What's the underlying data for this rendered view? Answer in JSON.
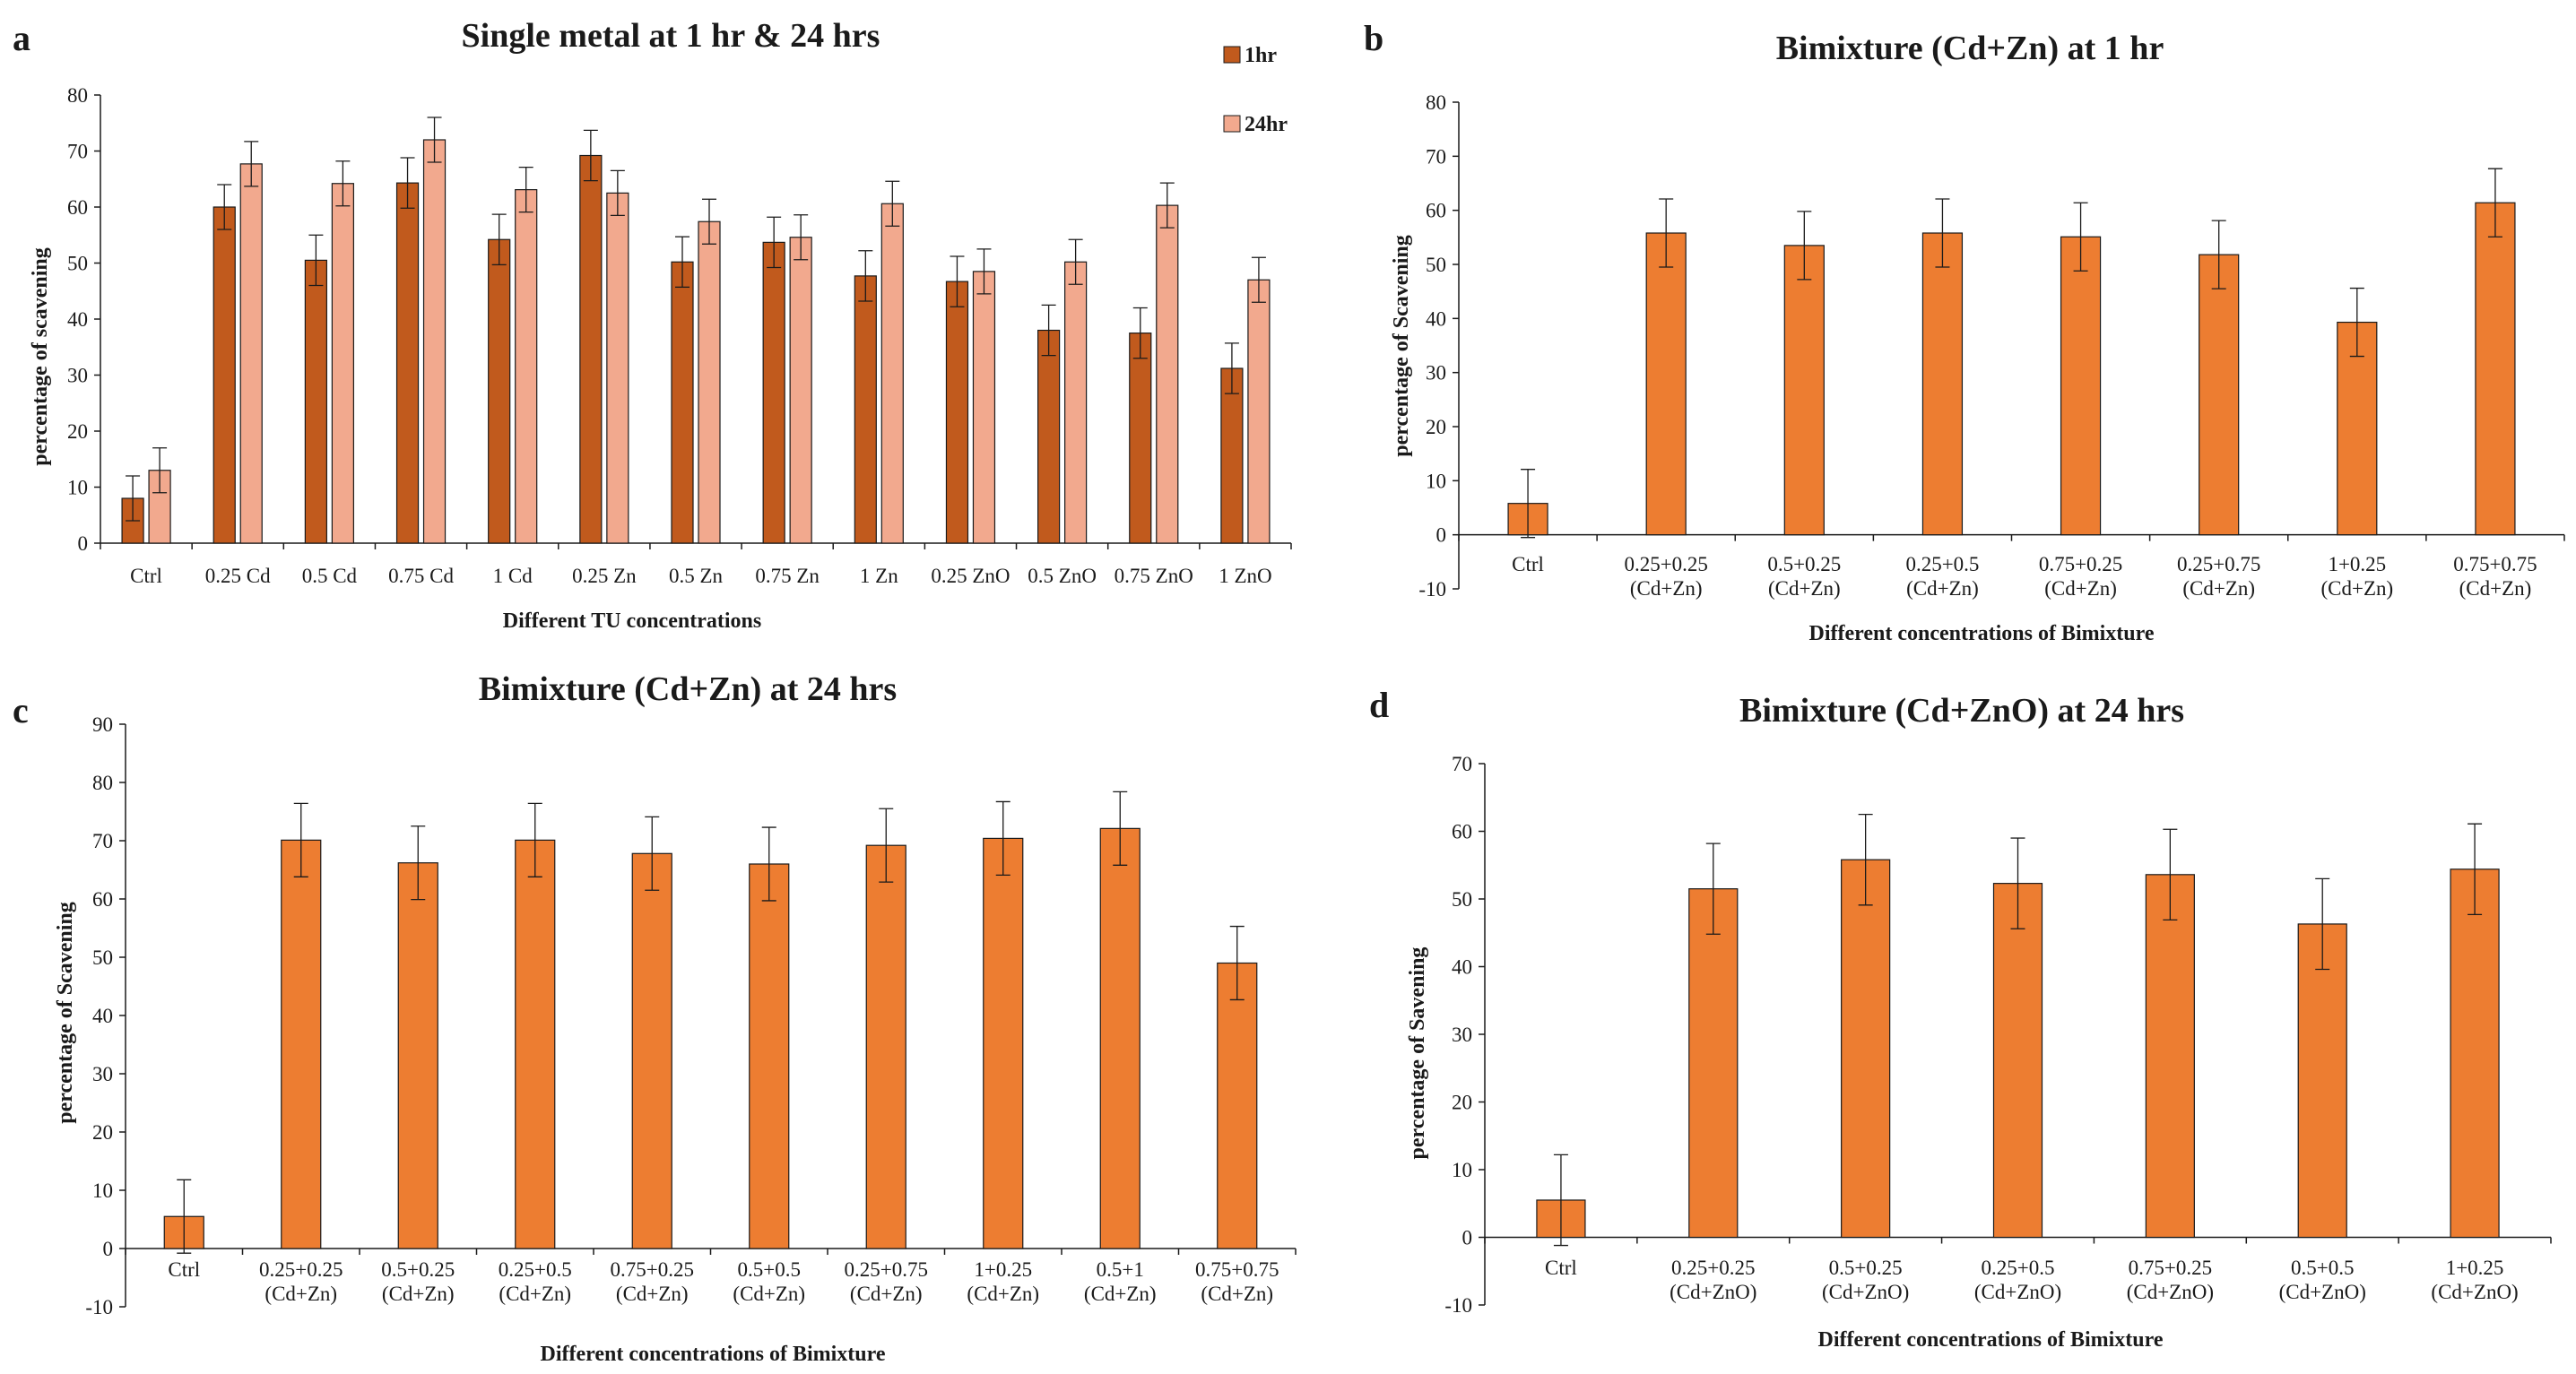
{
  "figure": {
    "colors": {
      "dark_bar": "#c15a1d",
      "light_bar": "#f2a98e",
      "orange_bar": "#ed7d31",
      "axis": "#1a1a1a"
    }
  },
  "chart_data": [
    {
      "panel": "a",
      "type": "bar",
      "title": "Single metal at 1 hr & 24 hrs",
      "xlabel": "Different TU  concentrations",
      "ylabel": "percentage of scavening",
      "ylim": [
        0,
        80
      ],
      "yticks": [
        0,
        10,
        20,
        30,
        40,
        50,
        60,
        70,
        80
      ],
      "categories": [
        "Ctrl",
        "0.25 Cd",
        "0.5 Cd",
        "0.75 Cd",
        "1 Cd",
        "0.25 Zn",
        "0.5 Zn",
        "0.75 Zn",
        "1 Zn",
        "0.25 ZnO",
        "0.5 ZnO",
        "0.75 ZnO",
        "1 ZnO"
      ],
      "legend_position": "top-right",
      "series": [
        {
          "name": "1hr",
          "values": [
            8,
            60,
            50.5,
            64.3,
            54.2,
            69.2,
            50.2,
            53.7,
            47.7,
            46.7,
            38,
            37.5,
            31.2
          ],
          "errors": [
            4,
            4,
            4.5,
            4.5,
            4.5,
            4.5,
            4.5,
            4.5,
            4.5,
            4.5,
            4.5,
            4.5,
            4.5
          ]
        },
        {
          "name": "24hr",
          "values": [
            13,
            67.7,
            64.2,
            72,
            63.1,
            62.5,
            57.4,
            54.6,
            60.6,
            48.5,
            50.2,
            60.3,
            47
          ],
          "errors": [
            4,
            4,
            4,
            4,
            4,
            4,
            4,
            4,
            4,
            4,
            4,
            4,
            4
          ]
        }
      ]
    },
    {
      "panel": "b",
      "type": "bar",
      "title": "Bimixture (Cd+Zn)  at 1 hr",
      "xlabel": "Different concentrations of Bimixture",
      "ylabel": "percentage of Scavening",
      "ylim": [
        -10,
        80
      ],
      "yticks": [
        -10,
        0,
        10,
        20,
        30,
        40,
        50,
        60,
        70,
        80
      ],
      "categories": [
        [
          "Ctrl"
        ],
        [
          "0.25+0.25",
          "(Cd+Zn)"
        ],
        [
          "0.5+0.25",
          "(Cd+Zn)"
        ],
        [
          "0.25+0.5",
          "(Cd+Zn)"
        ],
        [
          "0.75+0.25",
          "(Cd+Zn)"
        ],
        [
          "0.25+0.75",
          "(Cd+Zn)"
        ],
        [
          "1+0.25",
          "(Cd+Zn)"
        ],
        [
          "0.75+0.75",
          "(Cd+Zn)"
        ]
      ],
      "series": [
        {
          "name": "1hr",
          "values": [
            5.8,
            55.8,
            53.5,
            55.8,
            55.1,
            51.8,
            39.3,
            61.4
          ],
          "errors": [
            6.3,
            6.3,
            6.3,
            6.3,
            6.3,
            6.3,
            6.3,
            6.3
          ]
        }
      ]
    },
    {
      "panel": "c",
      "type": "bar",
      "title": "Bimixture (Cd+Zn)  at 24 hrs",
      "xlabel": "Different concentrations of Bimixture",
      "ylabel": "percentage of Scavening",
      "ylim": [
        -10,
        90
      ],
      "yticks": [
        -10,
        0,
        10,
        20,
        30,
        40,
        50,
        60,
        70,
        80,
        90
      ],
      "categories": [
        [
          "Ctrl"
        ],
        [
          "0.25+0.25",
          "(Cd+Zn)"
        ],
        [
          "0.5+0.25",
          "(Cd+Zn)"
        ],
        [
          "0.25+0.5",
          "(Cd+Zn)"
        ],
        [
          "0.75+0.25",
          "(Cd+Zn)"
        ],
        [
          "0.5+0.5",
          "(Cd+Zn)"
        ],
        [
          "0.25+0.75",
          "(Cd+Zn)"
        ],
        [
          "1+0.25",
          "(Cd+Zn)"
        ],
        [
          "0.5+1",
          "(Cd+Zn)"
        ],
        [
          "0.75+0.75",
          "(Cd+Zn)"
        ]
      ],
      "series": [
        {
          "name": "24hr",
          "values": [
            5.5,
            70.1,
            66.2,
            70.1,
            67.8,
            66,
            69.2,
            70.4,
            72.1,
            49
          ],
          "errors": [
            6.3,
            6.3,
            6.3,
            6.3,
            6.3,
            6.3,
            6.3,
            6.3,
            6.3,
            6.3
          ]
        }
      ]
    },
    {
      "panel": "d",
      "type": "bar",
      "title": "Bimixture (Cd+ZnO) at 24 hrs",
      "xlabel": "Different concentrations of Bimixture",
      "ylabel": "percentage of Savening",
      "ylim": [
        -10,
        70
      ],
      "yticks": [
        -10,
        0,
        10,
        20,
        30,
        40,
        50,
        60,
        70
      ],
      "categories": [
        [
          "Ctrl"
        ],
        [
          "0.25+0.25",
          "(Cd+ZnO)"
        ],
        [
          "0.5+0.25",
          "(Cd+ZnO)"
        ],
        [
          "0.25+0.5",
          "(Cd+ZnO)"
        ],
        [
          "0.75+0.25",
          "(Cd+ZnO)"
        ],
        [
          "0.5+0.5",
          "(Cd+ZnO)"
        ],
        [
          "1+0.25",
          "(Cd+ZnO)"
        ]
      ],
      "series": [
        {
          "name": "24hr",
          "values": [
            5.5,
            51.5,
            55.8,
            52.3,
            53.6,
            46.3,
            54.4
          ],
          "errors": [
            6.7,
            6.7,
            6.7,
            6.7,
            6.7,
            6.7,
            6.7
          ]
        }
      ]
    }
  ]
}
